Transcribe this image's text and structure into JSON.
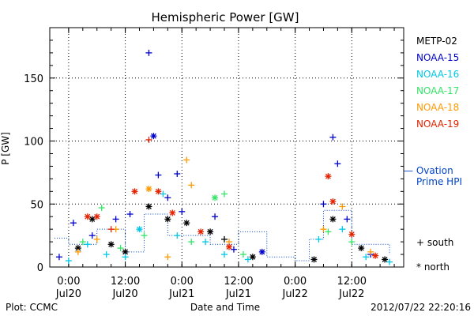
{
  "chart_data": {
    "type": "scatter",
    "title": "Hemispheric Power [GW]",
    "ylabel": "P [GW]",
    "xlabel": "Date and Time",
    "ylim": [
      0,
      190
    ],
    "xlim": [
      "2012-07-19 20:00",
      "2012-07-22 23:00"
    ],
    "y_ticks": [
      0,
      50,
      100,
      150
    ],
    "x_ticks": [
      {
        "time": "0:00",
        "date": "Jul20",
        "at": "2012-07-20 00:00"
      },
      {
        "time": "12:00",
        "date": "Jul20",
        "at": "2012-07-20 12:00"
      },
      {
        "time": "0:00",
        "date": "Jul21",
        "at": "2012-07-21 00:00"
      },
      {
        "time": "12:00",
        "date": "Jul21",
        "at": "2012-07-21 12:00"
      },
      {
        "time": "0:00",
        "date": "Jul22",
        "at": "2012-07-22 00:00"
      },
      {
        "time": "12:00",
        "date": "Jul22",
        "at": "2012-07-22 12:00"
      }
    ],
    "grid": true,
    "legend_position": "right",
    "marker_legend": [
      {
        "symbol": "+",
        "label": "south"
      },
      {
        "symbol": "*",
        "label": "north"
      }
    ],
    "series": [
      {
        "name": "METP-02",
        "color": "#000000",
        "points": [
          {
            "x": "2012-07-20 02:00",
            "y": 15,
            "m": "n"
          },
          {
            "x": "2012-07-20 05:00",
            "y": 38,
            "m": "n"
          },
          {
            "x": "2012-07-20 09:00",
            "y": 18,
            "m": "n"
          },
          {
            "x": "2012-07-20 12:00",
            "y": 12,
            "m": "n"
          },
          {
            "x": "2012-07-20 17:00",
            "y": 48,
            "m": "n"
          },
          {
            "x": "2012-07-20 21:00",
            "y": 38,
            "m": "n"
          },
          {
            "x": "2012-07-21 01:00",
            "y": 35,
            "m": "n"
          },
          {
            "x": "2012-07-21 06:00",
            "y": 28,
            "m": "n"
          },
          {
            "x": "2012-07-21 09:00",
            "y": 22,
            "m": "s"
          },
          {
            "x": "2012-07-21 15:00",
            "y": 8,
            "m": "n"
          },
          {
            "x": "2012-07-22 04:00",
            "y": 6,
            "m": "n"
          },
          {
            "x": "2012-07-22 08:00",
            "y": 38,
            "m": "n"
          },
          {
            "x": "2012-07-22 14:00",
            "y": 15,
            "m": "n"
          },
          {
            "x": "2012-07-22 19:00",
            "y": 6,
            "m": "n"
          }
        ]
      },
      {
        "name": "NOAA-15",
        "color": "#0000cc",
        "points": [
          {
            "x": "2012-07-19 22:00",
            "y": 8,
            "m": "s"
          },
          {
            "x": "2012-07-20 01:00",
            "y": 35,
            "m": "s"
          },
          {
            "x": "2012-07-20 05:00",
            "y": 25,
            "m": "s"
          },
          {
            "x": "2012-07-20 10:00",
            "y": 38,
            "m": "s"
          },
          {
            "x": "2012-07-20 13:00",
            "y": 42,
            "m": "s"
          },
          {
            "x": "2012-07-20 17:00",
            "y": 170,
            "m": "s"
          },
          {
            "x": "2012-07-20 18:00",
            "y": 104,
            "m": "n"
          },
          {
            "x": "2012-07-20 19:00",
            "y": 73,
            "m": "s"
          },
          {
            "x": "2012-07-20 21:00",
            "y": 55,
            "m": "s"
          },
          {
            "x": "2012-07-20 23:00",
            "y": 74,
            "m": "s"
          },
          {
            "x": "2012-07-21 00:00",
            "y": 44,
            "m": "s"
          },
          {
            "x": "2012-07-21 07:00",
            "y": 40,
            "m": "s"
          },
          {
            "x": "2012-07-21 11:00",
            "y": 14,
            "m": "s"
          },
          {
            "x": "2012-07-21 17:00",
            "y": 12,
            "m": "n"
          },
          {
            "x": "2012-07-22 06:00",
            "y": 50,
            "m": "s"
          },
          {
            "x": "2012-07-22 08:00",
            "y": 103,
            "m": "s"
          },
          {
            "x": "2012-07-22 09:00",
            "y": 82,
            "m": "s"
          },
          {
            "x": "2012-07-22 11:00",
            "y": 38,
            "m": "s"
          },
          {
            "x": "2012-07-22 16:00",
            "y": 10,
            "m": "s"
          }
        ]
      },
      {
        "name": "NOAA-16",
        "color": "#00c8e6",
        "points": [
          {
            "x": "2012-07-20 00:00",
            "y": 5,
            "m": "s"
          },
          {
            "x": "2012-07-20 04:00",
            "y": 18,
            "m": "s"
          },
          {
            "x": "2012-07-20 08:00",
            "y": 10,
            "m": "s"
          },
          {
            "x": "2012-07-20 12:00",
            "y": 8,
            "m": "s"
          },
          {
            "x": "2012-07-20 15:00",
            "y": 30,
            "m": "n"
          },
          {
            "x": "2012-07-20 20:00",
            "y": 58,
            "m": "s"
          },
          {
            "x": "2012-07-20 23:00",
            "y": 25,
            "m": "s"
          },
          {
            "x": "2012-07-21 05:00",
            "y": 20,
            "m": "s"
          },
          {
            "x": "2012-07-21 09:00",
            "y": 10,
            "m": "s"
          },
          {
            "x": "2012-07-21 14:00",
            "y": 6,
            "m": "s"
          },
          {
            "x": "2012-07-22 05:00",
            "y": 22,
            "m": "s"
          },
          {
            "x": "2012-07-22 10:00",
            "y": 30,
            "m": "s"
          },
          {
            "x": "2012-07-22 15:00",
            "y": 8,
            "m": "s"
          },
          {
            "x": "2012-07-22 20:00",
            "y": 4,
            "m": "s"
          }
        ]
      },
      {
        "name": "NOAA-17",
        "color": "#33e666",
        "points": [
          {
            "x": "2012-07-20 03:00",
            "y": 20,
            "m": "s"
          },
          {
            "x": "2012-07-20 07:00",
            "y": 47,
            "m": "s"
          },
          {
            "x": "2012-07-20 11:00",
            "y": 15,
            "m": "s"
          },
          {
            "x": "2012-07-20 16:00",
            "y": 25,
            "m": "s"
          },
          {
            "x": "2012-07-21 02:00",
            "y": 20,
            "m": "s"
          },
          {
            "x": "2012-07-21 07:00",
            "y": 55,
            "m": "n"
          },
          {
            "x": "2012-07-21 09:00",
            "y": 58,
            "m": "s"
          },
          {
            "x": "2012-07-21 13:00",
            "y": 10,
            "m": "s"
          },
          {
            "x": "2012-07-22 07:00",
            "y": 28,
            "m": "s"
          },
          {
            "x": "2012-07-22 12:00",
            "y": 20,
            "m": "s"
          }
        ]
      },
      {
        "name": "NOAA-18",
        "color": "#ff9900",
        "points": [
          {
            "x": "2012-07-20 02:00",
            "y": 12,
            "m": "s"
          },
          {
            "x": "2012-07-20 06:00",
            "y": 22,
            "m": "s"
          },
          {
            "x": "2012-07-20 10:00",
            "y": 30,
            "m": "s"
          },
          {
            "x": "2012-07-20 17:00",
            "y": 62,
            "m": "n"
          },
          {
            "x": "2012-07-20 21:00",
            "y": 8,
            "m": "s"
          },
          {
            "x": "2012-07-21 01:00",
            "y": 85,
            "m": "s"
          },
          {
            "x": "2012-07-21 02:00",
            "y": 65,
            "m": "s"
          },
          {
            "x": "2012-07-21 10:00",
            "y": 20,
            "m": "s"
          },
          {
            "x": "2012-07-22 06:00",
            "y": 30,
            "m": "s"
          },
          {
            "x": "2012-07-22 10:00",
            "y": 48,
            "m": "s"
          },
          {
            "x": "2012-07-22 16:00",
            "y": 12,
            "m": "s"
          }
        ]
      },
      {
        "name": "NOAA-19",
        "color": "#e62200",
        "points": [
          {
            "x": "2012-07-20 04:00",
            "y": 40,
            "m": "n"
          },
          {
            "x": "2012-07-20 06:00",
            "y": 40,
            "m": "n"
          },
          {
            "x": "2012-07-20 09:00",
            "y": 30,
            "m": "s"
          },
          {
            "x": "2012-07-20 14:00",
            "y": 60,
            "m": "n"
          },
          {
            "x": "2012-07-20 17:00",
            "y": 101,
            "m": "s"
          },
          {
            "x": "2012-07-20 19:00",
            "y": 60,
            "m": "n"
          },
          {
            "x": "2012-07-20 22:00",
            "y": 43,
            "m": "n"
          },
          {
            "x": "2012-07-21 04:00",
            "y": 28,
            "m": "n"
          },
          {
            "x": "2012-07-21 10:00",
            "y": 16,
            "m": "n"
          },
          {
            "x": "2012-07-22 07:00",
            "y": 72,
            "m": "n"
          },
          {
            "x": "2012-07-22 08:00",
            "y": 52,
            "m": "n"
          },
          {
            "x": "2012-07-22 12:00",
            "y": 26,
            "m": "n"
          },
          {
            "x": "2012-07-22 17:00",
            "y": 9,
            "m": "n"
          }
        ]
      }
    ],
    "ovation": {
      "name": "Ovation Prime HPI",
      "label_line1": "— Ovation",
      "label_line2": "Prime HPI",
      "color": "#0044cc",
      "values": [
        {
          "x": "2012-07-19 21:00",
          "y": 23
        },
        {
          "x": "2012-07-20 00:00",
          "y": 18
        },
        {
          "x": "2012-07-20 06:00",
          "y": 30
        },
        {
          "x": "2012-07-20 12:00",
          "y": 12
        },
        {
          "x": "2012-07-20 16:00",
          "y": 42
        },
        {
          "x": "2012-07-20 21:00",
          "y": 25
        },
        {
          "x": "2012-07-21 06:00",
          "y": 18
        },
        {
          "x": "2012-07-21 12:00",
          "y": 28
        },
        {
          "x": "2012-07-21 18:00",
          "y": 8
        },
        {
          "x": "2012-07-22 00:00",
          "y": 5
        },
        {
          "x": "2012-07-22 03:00",
          "y": 22
        },
        {
          "x": "2012-07-22 06:00",
          "y": 45
        },
        {
          "x": "2012-07-22 12:00",
          "y": 18
        },
        {
          "x": "2012-07-22 20:00",
          "y": 10
        }
      ]
    }
  },
  "footer": {
    "plot_credit": "Plot: CCMC",
    "timestamp": "2012/07/22 22:20:16"
  }
}
